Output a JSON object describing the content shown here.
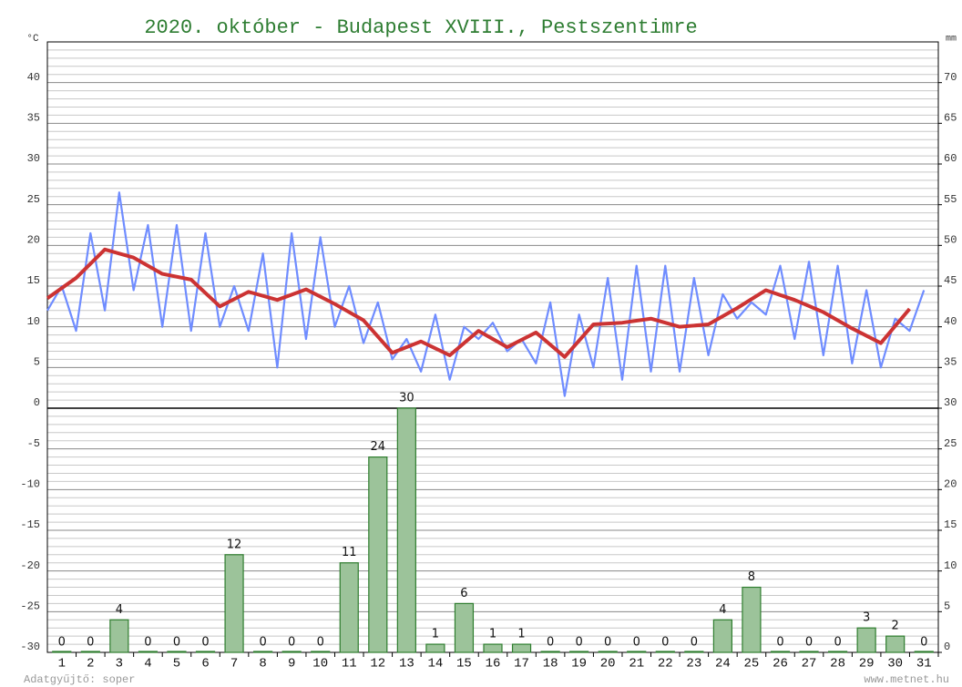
{
  "chart_data": {
    "type": "weather",
    "title": "2020. október - Budapest XVIII., Pestszentimre",
    "y_unit": "°C",
    "y2_unit": "mm",
    "footer_left": "Adatgyűjtő: soper",
    "footer_right": "www.metnet.hu",
    "categories": [
      "1",
      "2",
      "3",
      "4",
      "5",
      "6",
      "7",
      "8",
      "9",
      "10",
      "11",
      "12",
      "13",
      "14",
      "15",
      "16",
      "17",
      "18",
      "19",
      "20",
      "21",
      "22",
      "23",
      "24",
      "25",
      "26",
      "27",
      "28",
      "29",
      "30",
      "31"
    ],
    "ylim": [
      -30,
      45
    ],
    "yticks": [
      -30,
      -25,
      -20,
      -15,
      -10,
      -5,
      0,
      5,
      10,
      15,
      20,
      25,
      30,
      35,
      40
    ],
    "y2lim": [
      0,
      75
    ],
    "y2ticks": [
      0,
      5,
      10,
      15,
      20,
      25,
      30,
      35,
      40,
      45,
      50,
      55,
      60,
      65,
      70
    ],
    "grid": true,
    "series": [
      {
        "type": "line",
        "color": "#6f8cff",
        "x": [
          0.5,
          1,
          1.5,
          2,
          2.5,
          3,
          3.5,
          4,
          4.5,
          5,
          5.5,
          6,
          6.5,
          7,
          7.5,
          8,
          8.5,
          9,
          9.5,
          10,
          10.5,
          11,
          11.5,
          12,
          12.5,
          13,
          13.5,
          14,
          14.5,
          15,
          15.5,
          16,
          16.5,
          17,
          17.5,
          18,
          18.5,
          19,
          19.5,
          20,
          20.5,
          21,
          21.5,
          22,
          22.5,
          23,
          23.5,
          24,
          24.5,
          25,
          25.5,
          26,
          26.5,
          27,
          27.5,
          28,
          28.5,
          29,
          29.5,
          30,
          30.5,
          31
        ],
        "values": [
          12,
          15,
          9.5,
          21.5,
          12,
          26.5,
          14.5,
          22.5,
          10,
          22.5,
          9.5,
          21.5,
          10,
          15,
          9.5,
          19,
          5,
          21.5,
          8.5,
          21,
          10,
          15,
          8,
          13,
          6,
          8.5,
          4.5,
          11.5,
          3.5,
          10,
          8.5,
          10.5,
          7,
          8.5,
          5.5,
          13,
          1.5,
          11.5,
          5,
          16,
          3.5,
          17.5,
          4.5,
          17.5,
          4.5,
          16,
          6.5,
          14,
          11,
          13,
          11.5,
          17.5,
          8.5,
          18,
          6.5,
          17.5,
          5.5,
          14.5,
          5,
          11,
          9.5,
          14.5
        ]
      },
      {
        "type": "line",
        "color": "#cc3333",
        "x": [
          0.5,
          1.5,
          2.5,
          3.5,
          4.5,
          5.5,
          6.5,
          7.5,
          8.5,
          9.5,
          10.5,
          11.5,
          12.5,
          13.5,
          14.5,
          15.5,
          16.5,
          17.5,
          18.5,
          19.5,
          20.5,
          21.5,
          22.5,
          23.5,
          24.5,
          25.5,
          26.5,
          27.5,
          28.5,
          29.5,
          30.5
        ],
        "values": [
          13.5,
          16,
          19.5,
          18.5,
          16.5,
          15.8,
          12.5,
          14.3,
          13.3,
          14.6,
          12.8,
          10.8,
          6.8,
          8.2,
          6.5,
          9.5,
          7.5,
          9.3,
          6.3,
          10.3,
          10.5,
          11,
          10,
          10.3,
          12.3,
          14.5,
          13.3,
          11.8,
          9.8,
          8,
          12.2
        ]
      },
      {
        "type": "bar",
        "axis": "y2",
        "color": "#9cc39a",
        "values": [
          0,
          0,
          4,
          0,
          0,
          0,
          12,
          0,
          0,
          0,
          11,
          24,
          30,
          1,
          6,
          1,
          1,
          0,
          0,
          0,
          0,
          0,
          0,
          4,
          8,
          0,
          0,
          0,
          3,
          2,
          0
        ]
      }
    ]
  }
}
